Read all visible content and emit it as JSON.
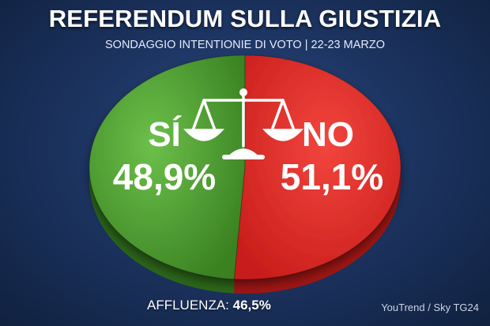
{
  "header": {
    "title": "REFERENDUM SULLA GIUSTIZIA",
    "subtitle": "SONDAGGIO INTENTIONIE DI VOTO | 22-23 MARZO"
  },
  "chart_data": {
    "type": "pie",
    "title": "REFERENDUM SULLA GIUSTIZIA",
    "subtitle": "SONDAGGIO INTENTIONIE DI VOTO | 22-23 MARZO",
    "slices": [
      {
        "label": "SÍ",
        "value": 48.9,
        "value_label": "48,9%",
        "color": "#4a9a2e"
      },
      {
        "label": "NO",
        "value": 51.1,
        "value_label": "51,1%",
        "color": "#df2a26"
      }
    ],
    "icon": "scales-of-justice-icon",
    "legend": "none",
    "style": "3d"
  },
  "footer": {
    "turnout_label": "AFFLUENZA:",
    "turnout_value": "46,5%",
    "source": "YouTrend / Sky TG24"
  },
  "colors": {
    "yes": "#4a9a2e",
    "no": "#df2a26",
    "background": "#1d3563"
  }
}
